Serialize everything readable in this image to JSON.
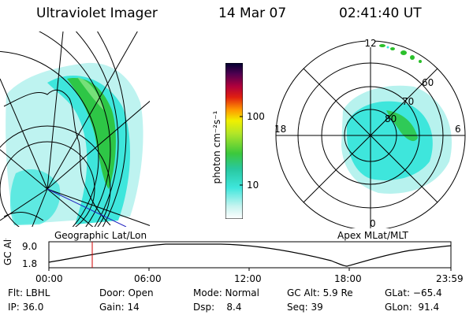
{
  "header": {
    "instrument": "Ultraviolet Imager",
    "date": "14 Mar 07",
    "time": "02:41:40 UT"
  },
  "geo_panel": {
    "label": "Geographic Lat/Lon"
  },
  "apex_panel": {
    "label": "Apex MLat/MLT",
    "mlt_labels": {
      "top": "12",
      "left": "18",
      "right": "6",
      "bottom": "0"
    },
    "lat_rings": [
      "60",
      "70",
      "80"
    ]
  },
  "colorbar": {
    "unit_label": "photon cm⁻²s⁻¹",
    "ticks": [
      "100",
      "10"
    ]
  },
  "altitude_plot": {
    "y_axis_label": "GC Alt",
    "y_ticks": [
      "9.0",
      "1.8"
    ],
    "x_ticks": [
      "00:00",
      "06:00",
      "12:00",
      "18:00",
      "23:59"
    ]
  },
  "info": {
    "flt": "Flt: LBHL",
    "ip": "IP: 36.0",
    "door": "Door: Open",
    "gain": "Gain: 14",
    "mode": "Mode: Normal",
    "dsp": "Dsp:    8.4",
    "gcalt": "GC Alt: 5.9 Re",
    "seq": "Seq: 39",
    "glat": "GLat: −65.4",
    "glon": "GLon:  91.4"
  },
  "colors": {
    "cyan": "#3ee6dc",
    "light_cyan": "#b7f2ee",
    "green": "#2bc02b",
    "yellow": "#f0f000",
    "orange": "#ff9900",
    "red": "#d00000",
    "dark": "#000030",
    "time_marker": "#d00000",
    "grid_blue": "#2020c0"
  }
}
